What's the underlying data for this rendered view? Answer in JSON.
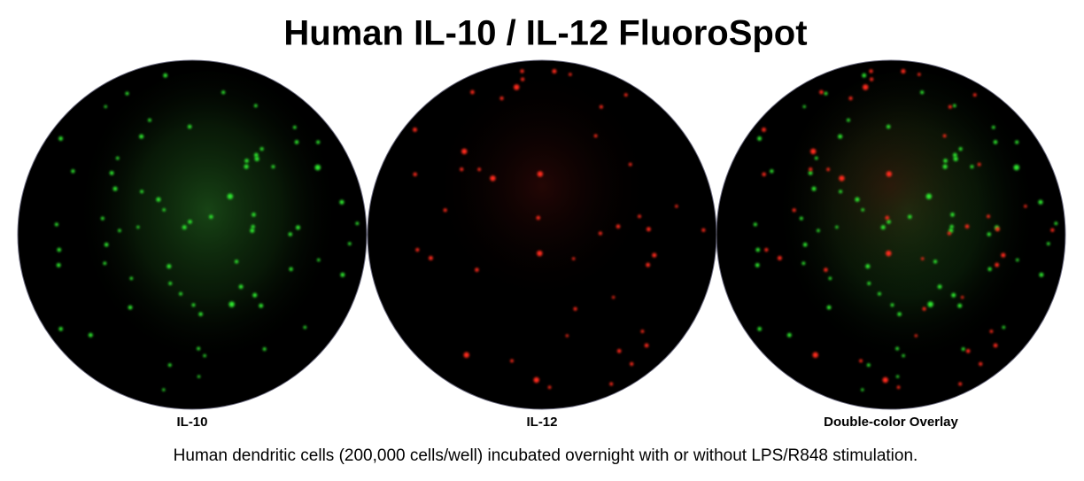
{
  "header": {
    "title": "Human IL-10 / IL-12 FluoroSpot"
  },
  "panels": [
    {
      "label": "IL-10"
    },
    {
      "label": "IL-12"
    },
    {
      "label": "Double-color Overlay"
    }
  ],
  "caption": "Human dendritic cells (200,000 cells/well) incubated overnight with or without LPS/R848 stimulation."
}
